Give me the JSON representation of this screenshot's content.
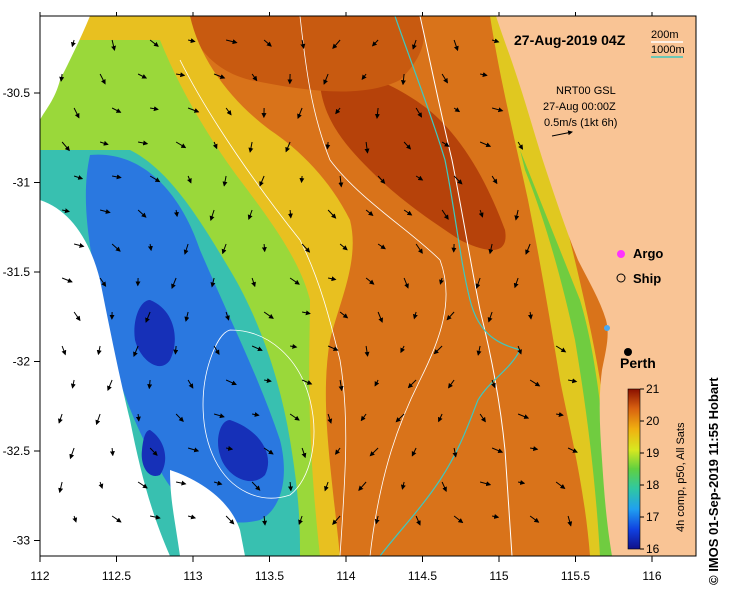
{
  "title": "27-Aug-2019 04Z",
  "product": {
    "line1": "NRT00 GSL",
    "line2": "27-Aug 00:00Z",
    "line3": "0.5m/s (1kt 6h)"
  },
  "contours": {
    "label_200m": "200m",
    "label_1000m": "1000m",
    "color_200m": "#ffffff",
    "color_1000m": "#3ec8c0"
  },
  "legend": {
    "argo": "Argo",
    "ship": "Ship",
    "argo_color": "#ff33ff"
  },
  "city": {
    "name": "Perth",
    "lon": 115.86,
    "lat": -31.95
  },
  "colorbar": {
    "caption": "4h comp, p50, All Sats",
    "min": 16,
    "max": 21,
    "ticks": [
      "21",
      "20",
      "19",
      "18",
      "17",
      "16"
    ]
  },
  "x_ticks": [
    "112",
    "112.5",
    "113",
    "113.5",
    "114",
    "114.5",
    "115",
    "115.5",
    "116"
  ],
  "y_ticks": [
    "-30.5",
    "-31",
    "-31.5",
    "-32",
    "-32.5",
    "-33"
  ],
  "credit": "© IMOS 01-Sep-2019 11:55 Hobart",
  "colors": {
    "land": "#f9c495",
    "cloud": "#ffffff",
    "sst_cold": "#1e3cc8",
    "sst_mid": "#a8e03c",
    "sst_warm": "#c85a0a"
  }
}
